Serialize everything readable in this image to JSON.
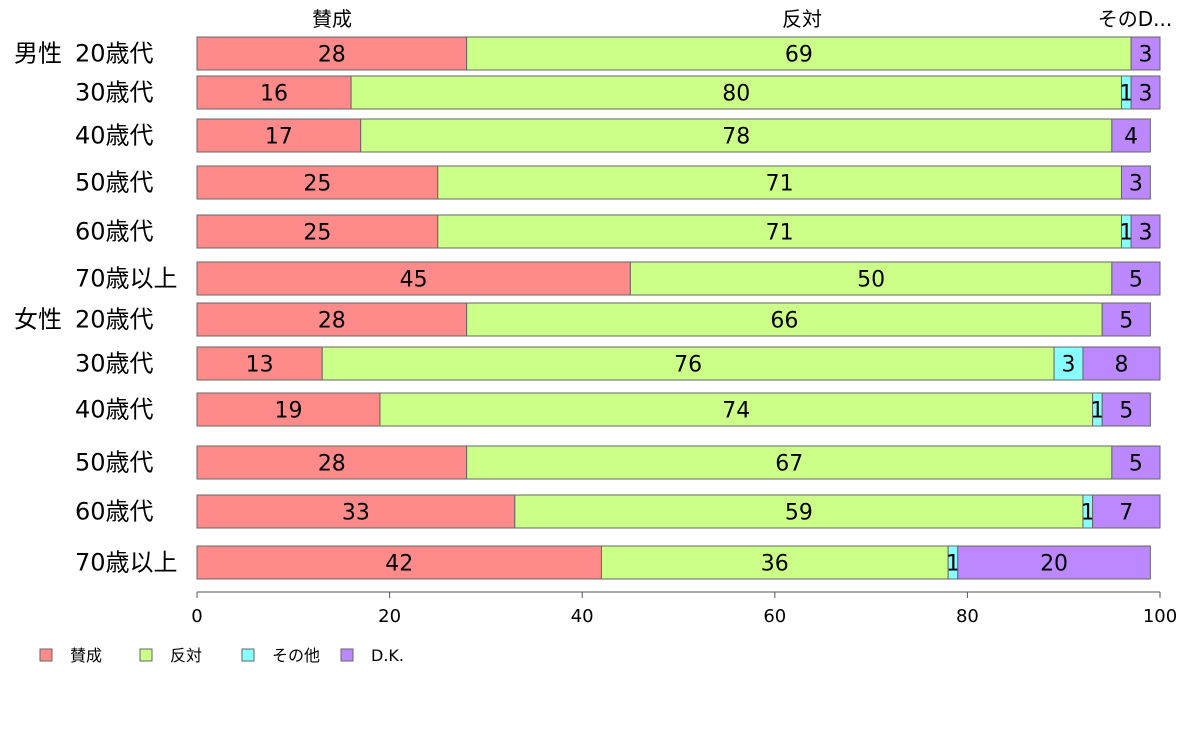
{
  "chart_data": {
    "type": "bar",
    "orientation": "horizontal",
    "stacked": true,
    "xlim": [
      0,
      100
    ],
    "x_ticks": [
      0,
      20,
      40,
      60,
      80,
      100
    ],
    "grid": false,
    "legend_position": "bottom-left",
    "series_header_labels": [
      "賛成",
      "反対",
      "そのD..."
    ],
    "categories": [
      {
        "group": "男性",
        "label": "20歳代"
      },
      {
        "group": "",
        "label": "30歳代"
      },
      {
        "group": "",
        "label": "40歳代"
      },
      {
        "group": "",
        "label": "50歳代"
      },
      {
        "group": "",
        "label": "60歳代"
      },
      {
        "group": "",
        "label": "70歳以上"
      },
      {
        "group": "女性",
        "label": "20歳代"
      },
      {
        "group": "",
        "label": "30歳代"
      },
      {
        "group": "",
        "label": "40歳代"
      },
      {
        "group": "",
        "label": "50歳代"
      },
      {
        "group": "",
        "label": "60歳代"
      },
      {
        "group": "",
        "label": "70歳以上"
      }
    ],
    "series": [
      {
        "name": "賛成",
        "color": "#FF8A8A",
        "values": [
          28,
          16,
          17,
          25,
          25,
          45,
          28,
          13,
          19,
          28,
          33,
          42
        ]
      },
      {
        "name": "反対",
        "color": "#CCFF88",
        "values": [
          69,
          80,
          78,
          71,
          71,
          50,
          66,
          76,
          74,
          67,
          59,
          36
        ]
      },
      {
        "name": "その他",
        "color": "#88FFFF",
        "values": [
          0,
          1,
          0,
          0,
          1,
          0,
          0,
          3,
          1,
          0,
          1,
          1
        ]
      },
      {
        "name": "D.K.",
        "color": "#BB88FF",
        "values": [
          3,
          3,
          4,
          3,
          3,
          5,
          5,
          8,
          5,
          5,
          7,
          20
        ]
      }
    ]
  }
}
